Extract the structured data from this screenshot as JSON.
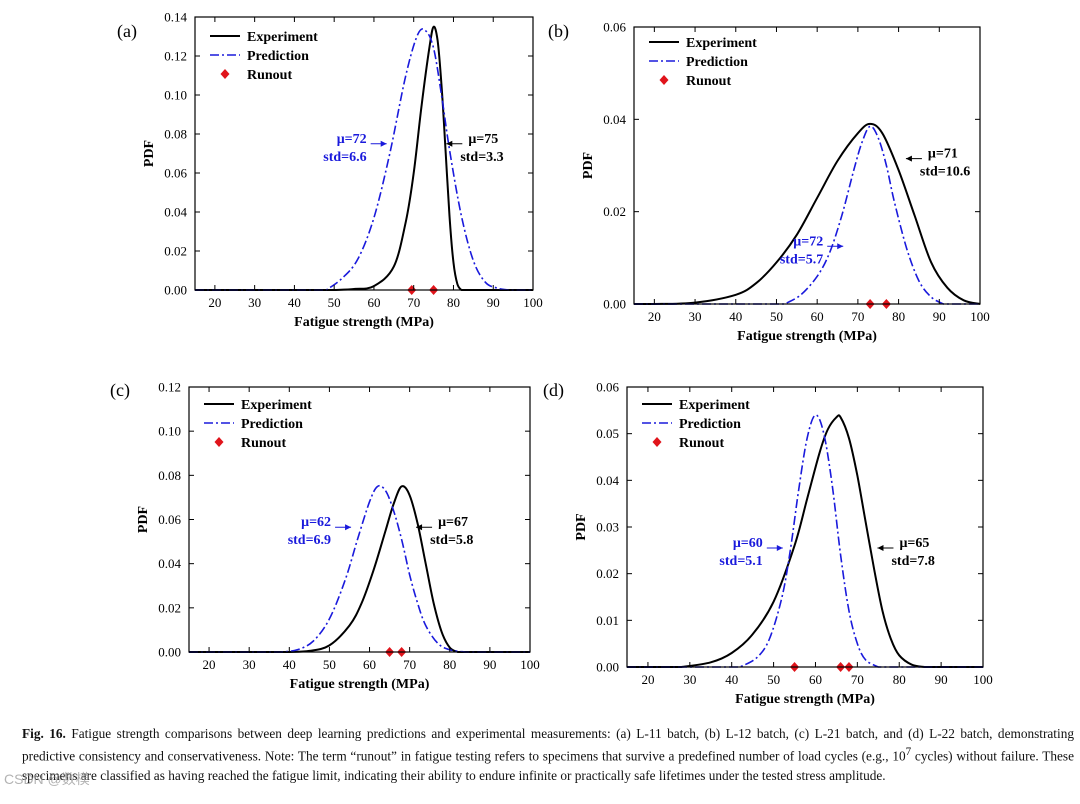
{
  "chart_data": [
    {
      "type": "line",
      "panel_label": "(a)",
      "xlabel": "Fatigue strength (MPa)",
      "ylabel": "PDF",
      "xlim": [
        15,
        100
      ],
      "ylim": [
        0,
        0.14
      ],
      "xticks": [
        20,
        30,
        40,
        50,
        60,
        70,
        80,
        90,
        100
      ],
      "yticks": [
        "0.00",
        "0.02",
        "0.04",
        "0.06",
        "0.08",
        "0.10",
        "0.12",
        "0.14"
      ],
      "legend": [
        "Experiment",
        "Prediction",
        "Runout"
      ],
      "series": [
        {
          "name": "Experiment",
          "style": "solid",
          "color": "#000000",
          "skew": 1,
          "x": [
            50,
            55,
            60,
            65,
            68,
            70,
            72,
            74,
            75,
            76,
            77,
            78,
            79,
            80,
            81,
            82
          ],
          "y": [
            0.0,
            0.0005,
            0.002,
            0.012,
            0.035,
            0.06,
            0.095,
            0.125,
            0.135,
            0.128,
            0.105,
            0.072,
            0.038,
            0.014,
            0.003,
            0.0
          ]
        },
        {
          "name": "Prediction",
          "style": "dashdot",
          "color": "#1a1adc",
          "skew": 1,
          "x": [
            48,
            52,
            56,
            60,
            64,
            68,
            71,
            73,
            75,
            77,
            79,
            82,
            85,
            88,
            91,
            94
          ],
          "y": [
            0.0,
            0.006,
            0.016,
            0.037,
            0.07,
            0.11,
            0.131,
            0.133,
            0.124,
            0.1,
            0.072,
            0.038,
            0.015,
            0.004,
            0.001,
            0.0
          ]
        }
      ],
      "runout": [
        69.5,
        75
      ],
      "annotations": [
        {
          "text1": "μ=72",
          "text2": "std=6.6",
          "color": "#1a1adc",
          "side": "left",
          "x": 63.2,
          "y": 0.075
        },
        {
          "text1": "μ=75",
          "text2": "std=3.3",
          "color": "#000000",
          "side": "right",
          "x": 78.2,
          "y": 0.075
        }
      ]
    },
    {
      "type": "line",
      "panel_label": "(b)",
      "xlabel": "Fatigue strength (MPa)",
      "ylabel": "PDF",
      "xlim": [
        15,
        100
      ],
      "ylim": [
        0,
        0.06
      ],
      "xticks": [
        20,
        30,
        40,
        50,
        60,
        70,
        80,
        90,
        100
      ],
      "yticks": [
        "0.00",
        "0.02",
        "0.04",
        "0.06"
      ],
      "legend": [
        "Experiment",
        "Prediction",
        "Runout"
      ],
      "series": [
        {
          "name": "Experiment",
          "style": "solid",
          "color": "#000000",
          "skew": 1,
          "x": [
            20,
            30,
            40,
            45,
            50,
            55,
            60,
            65,
            70,
            73,
            76,
            80,
            84,
            88,
            92,
            96,
            100
          ],
          "y": [
            0.0,
            0.0003,
            0.002,
            0.0045,
            0.009,
            0.015,
            0.023,
            0.031,
            0.037,
            0.039,
            0.037,
            0.029,
            0.019,
            0.009,
            0.0035,
            0.0008,
            0.0
          ]
        },
        {
          "name": "Prediction",
          "style": "dashdot",
          "color": "#1a1adc",
          "skew": 1,
          "x": [
            52,
            56,
            60,
            63,
            66,
            69,
            71,
            73,
            75,
            77,
            79,
            82,
            85,
            88,
            91
          ],
          "y": [
            0.0,
            0.002,
            0.006,
            0.011,
            0.019,
            0.029,
            0.035,
            0.0385,
            0.036,
            0.03,
            0.022,
            0.012,
            0.005,
            0.0015,
            0.0
          ]
        }
      ],
      "runout": [
        73,
        77
      ],
      "annotations": [
        {
          "text1": "μ=72",
          "text2": "std=5.7",
          "color": "#1a1adc",
          "side": "left",
          "x": 66.4,
          "y": 0.0125
        },
        {
          "text1": "μ=71",
          "text2": "std=10.6",
          "color": "#000000",
          "side": "right",
          "x": 81.8,
          "y": 0.0315
        }
      ]
    },
    {
      "type": "line",
      "panel_label": "(c)",
      "xlabel": "Fatigue strength (MPa)",
      "ylabel": "PDF",
      "xlim": [
        15,
        100
      ],
      "ylim": [
        0,
        0.12
      ],
      "xticks": [
        20,
        30,
        40,
        50,
        60,
        70,
        80,
        90,
        100
      ],
      "yticks": [
        "0.00",
        "0.02",
        "0.04",
        "0.06",
        "0.08",
        "0.10",
        "0.12"
      ],
      "legend": [
        "Experiment",
        "Prediction",
        "Runout"
      ],
      "series": [
        {
          "name": "Experiment",
          "style": "solid",
          "color": "#000000",
          "skew": 1,
          "x": [
            40,
            45,
            50,
            55,
            58,
            61,
            64,
            66,
            68,
            70,
            72,
            74,
            76,
            78,
            80,
            82
          ],
          "y": [
            0.0,
            0.0005,
            0.003,
            0.012,
            0.022,
            0.037,
            0.055,
            0.067,
            0.075,
            0.071,
            0.058,
            0.04,
            0.022,
            0.009,
            0.002,
            0.0
          ]
        },
        {
          "name": "Prediction",
          "style": "dashdot",
          "color": "#1a1adc",
          "skew": 1,
          "x": [
            38,
            42,
            46,
            50,
            54,
            57,
            60,
            62,
            64,
            66,
            68,
            70,
            72,
            74,
            77,
            80,
            84
          ],
          "y": [
            0.0,
            0.001,
            0.005,
            0.015,
            0.033,
            0.051,
            0.068,
            0.075,
            0.073,
            0.064,
            0.051,
            0.035,
            0.022,
            0.012,
            0.004,
            0.001,
            0.0
          ]
        }
      ],
      "runout": [
        65,
        68
      ],
      "annotations": [
        {
          "text1": "μ=62",
          "text2": "std=6.9",
          "color": "#1a1adc",
          "side": "left",
          "x": 55.4,
          "y": 0.0565
        },
        {
          "text1": "μ=67",
          "text2": "std=5.8",
          "color": "#000000",
          "side": "right",
          "x": 71.6,
          "y": 0.0565
        }
      ]
    },
    {
      "type": "line",
      "panel_label": "(d)",
      "xlabel": "Fatigue strength (MPa)",
      "ylabel": "PDF",
      "xlim": [
        15,
        100
      ],
      "ylim": [
        0,
        0.06
      ],
      "xticks": [
        20,
        30,
        40,
        50,
        60,
        70,
        80,
        90,
        100
      ],
      "yticks": [
        "0.00",
        "0.01",
        "0.02",
        "0.03",
        "0.04",
        "0.05",
        "0.06"
      ],
      "legend": [
        "Experiment",
        "Prediction",
        "Runout"
      ],
      "series": [
        {
          "name": "Experiment",
          "style": "solid",
          "color": "#000000",
          "skew": 1,
          "x": [
            28,
            35,
            40,
            45,
            50,
            55,
            58,
            61,
            63,
            65,
            66,
            68,
            70,
            72,
            74,
            76,
            78,
            80,
            83,
            86
          ],
          "y": [
            0.0,
            0.001,
            0.003,
            0.007,
            0.014,
            0.026,
            0.036,
            0.046,
            0.051,
            0.0535,
            0.0535,
            0.049,
            0.041,
            0.031,
            0.021,
            0.012,
            0.006,
            0.0025,
            0.0005,
            0.0
          ]
        },
        {
          "name": "Prediction",
          "style": "dashdot",
          "color": "#1a1adc",
          "skew": 1,
          "x": [
            42,
            46,
            49,
            52,
            54,
            56,
            58,
            60,
            62,
            64,
            66,
            68,
            70,
            72,
            75
          ],
          "y": [
            0.0,
            0.002,
            0.006,
            0.015,
            0.025,
            0.038,
            0.049,
            0.054,
            0.05,
            0.039,
            0.024,
            0.012,
            0.005,
            0.0015,
            0.0
          ]
        }
      ],
      "runout": [
        55,
        66,
        68
      ],
      "annotations": [
        {
          "text1": "μ=60",
          "text2": "std=5.1",
          "color": "#1a1adc",
          "side": "left",
          "x": 52.2,
          "y": 0.0255
        },
        {
          "text1": "μ=65",
          "text2": "std=7.8",
          "color": "#000000",
          "side": "right",
          "x": 74.8,
          "y": 0.0255
        }
      ]
    }
  ],
  "caption": {
    "fig_label": "Fig. 16.",
    "text_before_sup": "Fatigue strength comparisons between deep learning predictions and experimental measurements: (a) L-11 batch, (b) L-12 batch, (c) L-21 batch, and (d) L-22 batch, demonstrating predictive consistency and conservativeness. Note: The term “runout” in fatigue testing refers to specimens that survive a predefined number of load cycles (e.g., 10",
    "sup": "7",
    "text_after_sup": " cycles) without failure. These specimens are classified as having reached the fatigue limit, indicating their ability to endure infinite or practically safe lifetimes under the tested stress amplitude."
  },
  "watermark": "CSDN @数模"
}
